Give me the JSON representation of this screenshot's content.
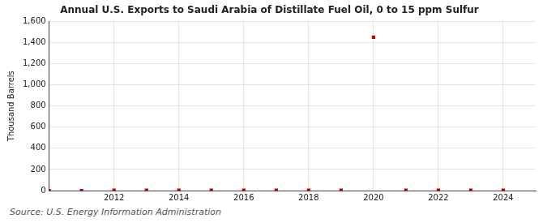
{
  "chart_data": {
    "type": "scatter",
    "title": "Annual U.S. Exports to Saudi Arabia of Distillate Fuel Oil, 0 to 15 ppm Sulfur",
    "ylabel": "Thousand Barrels",
    "annotation": "Source: U.S. Energy Information Administration",
    "x": [
      2010,
      2011,
      2012,
      2013,
      2014,
      2015,
      2016,
      2017,
      2018,
      2019,
      2020,
      2021,
      2022,
      2023,
      2024
    ],
    "values": [
      0,
      0,
      2,
      2,
      2,
      2,
      2,
      2,
      2,
      2,
      1450,
      2,
      2,
      2,
      2
    ],
    "color": "#cc0000",
    "marker": "square",
    "xlim": [
      2010,
      2025
    ],
    "xticks": [
      2012,
      2014,
      2016,
      2018,
      2020,
      2022,
      2024
    ],
    "ylim": [
      0,
      1600
    ],
    "yticks": [
      0,
      200,
      400,
      600,
      800,
      {
        "value": 1000,
        "label": "1,000"
      },
      {
        "value": 1200,
        "label": "1,200"
      },
      {
        "value": 1400,
        "label": "1,400"
      },
      {
        "value": 1600,
        "label": "1,600"
      }
    ],
    "grid": true
  }
}
